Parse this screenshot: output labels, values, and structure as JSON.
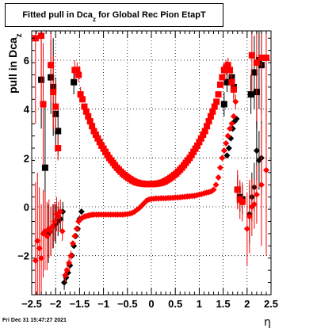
{
  "title": {
    "prefix": "Fitted pull in Dca",
    "subscript": "z",
    "suffix": " for Global Rec Pion EtapT"
  },
  "footer": "Fri Dec 31 15:47:27 2021",
  "colors": {
    "series_black": "#000000",
    "series_red": "#ff0000",
    "grid": "#000000"
  },
  "chart_data": {
    "type": "scatter",
    "xlabel": "η",
    "ylabel_prefix": "pull in Dca",
    "ylabel_subscript": "z",
    "xlim": [
      -2.5,
      2.5
    ],
    "ylim": [
      -3.6,
      7.2
    ],
    "grid": true,
    "xticks": [
      "−2.5",
      "−2",
      "−1.5",
      "−1",
      "−0.5",
      "0",
      "0.5",
      "1",
      "1.5",
      "2",
      "2.5"
    ],
    "xtick_values": [
      -2.5,
      -2,
      -1.5,
      -1,
      -0.5,
      0,
      0.5,
      1,
      1.5,
      2,
      2.5
    ],
    "yticks": [
      "−2",
      "0",
      "2",
      "4",
      "6"
    ],
    "ytick_values": [
      -2,
      0,
      2,
      4,
      6
    ],
    "series": [
      {
        "marker": "square",
        "color": "#000000",
        "x": [
          -2.3,
          -2.22,
          -2.1,
          -2.05,
          -2.0,
          -1.95,
          -1.62,
          1.52,
          1.58,
          1.68,
          1.72,
          1.8,
          1.85,
          1.9,
          2.08,
          2.15,
          2.2,
          2.25,
          2.3
        ],
        "y": [
          5.2,
          1.6,
          5.3,
          4.9,
          3.8,
          3.1,
          5.1,
          4.2,
          5.1,
          5.3,
          4.9,
          0.7,
          0.4,
          0.3,
          4.6,
          5.5,
          4.7,
          6.0,
          5.8
        ],
        "yerr": [
          2.0,
          2.5,
          1.5,
          2.0,
          1.5,
          1.0,
          0.5,
          0.5,
          0.4,
          0.4,
          0.5,
          0.6,
          0.6,
          0.6,
          0.8,
          1.5,
          1.5,
          2.0,
          2.0
        ]
      },
      {
        "marker": "square",
        "color": "#ff0000",
        "x": [
          -2.42,
          -2.3,
          -2.26,
          -2.1,
          -2.05,
          -2.0,
          -1.95,
          -1.6,
          -1.55,
          -1.52,
          -1.48,
          -1.44,
          -1.4,
          -1.36,
          -1.32,
          -1.28,
          -1.24,
          -1.2,
          -1.16,
          -1.12,
          -1.08,
          -1.04,
          -1.0,
          -0.96,
          -0.92,
          -0.88,
          -0.84,
          -0.8,
          -0.76,
          -0.72,
          -0.68,
          -0.64,
          -0.6,
          -0.56,
          -0.52,
          -0.48,
          -0.44,
          -0.4,
          -0.36,
          -0.32,
          -0.28,
          -0.24,
          -0.2,
          -0.16,
          -0.12,
          -0.08,
          -0.04,
          0.0,
          0.04,
          0.08,
          0.12,
          0.16,
          0.2,
          0.24,
          0.28,
          0.32,
          0.36,
          0.4,
          0.44,
          0.48,
          0.52,
          0.56,
          0.6,
          0.64,
          0.68,
          0.72,
          0.76,
          0.8,
          0.84,
          0.88,
          0.92,
          0.96,
          1.0,
          1.04,
          1.08,
          1.12,
          1.16,
          1.2,
          1.24,
          1.28,
          1.32,
          1.36,
          1.4,
          1.44,
          1.48,
          1.52,
          1.56,
          1.6,
          1.64,
          1.68,
          1.72,
          1.8,
          1.85,
          1.9,
          2.1,
          2.2,
          2.3,
          2.4
        ],
        "y": [
          6.9,
          7.0,
          4.2,
          5.8,
          4.7,
          4.1,
          2.4,
          5.6,
          5.6,
          5.4,
          4.6,
          4.4,
          4.1,
          3.9,
          3.7,
          3.5,
          3.3,
          3.1,
          2.95,
          2.8,
          2.65,
          2.5,
          2.38,
          2.25,
          2.12,
          2.0,
          1.9,
          1.8,
          1.7,
          1.6,
          1.52,
          1.44,
          1.36,
          1.3,
          1.24,
          1.18,
          1.13,
          1.08,
          1.04,
          1.0,
          0.98,
          0.96,
          0.95,
          0.94,
          0.93,
          0.93,
          0.93,
          0.93,
          0.93,
          0.94,
          0.95,
          0.96,
          0.98,
          1.0,
          1.04,
          1.08,
          1.13,
          1.18,
          1.24,
          1.3,
          1.36,
          1.44,
          1.52,
          1.6,
          1.7,
          1.8,
          1.9,
          2.0,
          2.12,
          2.25,
          2.38,
          2.5,
          2.65,
          2.8,
          2.95,
          3.1,
          3.3,
          3.5,
          3.7,
          3.9,
          4.1,
          4.3,
          4.6,
          5.0,
          5.3,
          5.6,
          5.7,
          5.8,
          5.6,
          5.1,
          4.8,
          0.7,
          0.3,
          0.2,
          6.2,
          5.9,
          6.1,
          6.1
        ],
        "yerr": [
          3.5,
          3.0,
          2.5,
          1.5,
          1.5,
          1.0,
          0.5,
          0.4,
          0.3,
          0.3,
          0.3,
          0,
          0,
          0,
          0,
          0,
          0,
          0,
          0,
          0,
          0,
          0,
          0,
          0,
          0,
          0,
          0,
          0,
          0,
          0,
          0,
          0,
          0,
          0,
          0,
          0,
          0,
          0,
          0,
          0,
          0,
          0,
          0,
          0,
          0,
          0,
          0,
          0,
          0,
          0,
          0,
          0,
          0,
          0,
          0,
          0,
          0,
          0,
          0,
          0,
          0,
          0,
          0,
          0,
          0,
          0,
          0,
          0,
          0,
          0,
          0,
          0,
          0,
          0,
          0,
          0,
          0,
          0,
          0,
          0,
          0,
          0,
          0,
          0,
          0,
          0.3,
          0.3,
          0.3,
          0.3,
          0.4,
          0.5,
          0.8,
          0.8,
          0.8,
          1.5,
          2.5,
          3.0,
          3.5
        ]
      },
      {
        "marker": "diamond",
        "color": "#000000",
        "x": [
          -2.15,
          -2.1,
          -2.05,
          -2.0,
          -1.95,
          -1.9,
          -1.85,
          -1.82,
          -1.78,
          -1.74,
          -1.7,
          -1.66,
          -1.62,
          -1.58,
          -1.54,
          -1.5,
          -1.46,
          1.58,
          1.62,
          1.66,
          1.7,
          1.74,
          1.78,
          2.05,
          2.1,
          2.15,
          2.2,
          2.25,
          2.3
        ],
        "y": [
          -1.1,
          -1.0,
          -0.8,
          -0.7,
          -0.6,
          -0.5,
          -0.2,
          -3.1,
          -2.9,
          -2.7,
          -2.4,
          -2.0,
          -1.6,
          -1.2,
          -0.9,
          -0.5,
          -0.2,
          2.1,
          2.4,
          2.8,
          3.2,
          3.5,
          3.6,
          -0.3,
          0.4,
          0.8,
          2.3,
          1.9,
          2.0
        ],
        "yerr": [
          1.2,
          1.0,
          0.9,
          0.8,
          0.6,
          0.5,
          0.4,
          0.3,
          0.2,
          0,
          0,
          0,
          0,
          0,
          0,
          0,
          0,
          0,
          0,
          0,
          0,
          0,
          0,
          1.2,
          1.0,
          1.0,
          1.2,
          1.2,
          1.5
        ]
      },
      {
        "marker": "diamond",
        "color": "#ff0000",
        "x": [
          -2.42,
          -2.38,
          -2.34,
          -2.3,
          -2.26,
          -2.22,
          -2.18,
          -2.14,
          -2.1,
          -2.06,
          -2.02,
          -1.98,
          -1.94,
          -1.9,
          -1.86,
          -1.8,
          -1.76,
          -1.72,
          -1.68,
          -1.64,
          -1.6,
          -1.56,
          -1.52,
          -1.48,
          -1.44,
          -1.4,
          -1.36,
          -1.32,
          -1.28,
          -1.24,
          -1.2,
          -1.15,
          -1.1,
          -1.05,
          -1.0,
          -0.95,
          -0.9,
          -0.85,
          -0.8,
          -0.75,
          -0.7,
          -0.65,
          -0.6,
          -0.55,
          -0.5,
          -0.45,
          -0.4,
          -0.35,
          -0.3,
          -0.25,
          -0.2,
          -0.15,
          -0.1,
          -0.05,
          0.0,
          0.05,
          0.1,
          0.15,
          0.2,
          0.25,
          0.3,
          0.35,
          0.4,
          0.45,
          0.5,
          0.55,
          0.6,
          0.65,
          0.7,
          0.75,
          0.8,
          0.85,
          0.9,
          0.95,
          1.0,
          1.05,
          1.1,
          1.15,
          1.2,
          1.25,
          1.3,
          1.35,
          1.4,
          1.44,
          1.48,
          1.52,
          1.56,
          1.6,
          1.64,
          1.68,
          1.72,
          1.76,
          2.0,
          2.05,
          2.1,
          2.15,
          2.2,
          2.3,
          2.4
        ],
        "y": [
          -2.2,
          -1.4,
          -1.7,
          -2.1,
          -1.1,
          -1.0,
          -1.2,
          -0.9,
          -1.0,
          -0.8,
          -0.6,
          -0.3,
          -0.4,
          -0.2,
          -1.0,
          -2.8,
          -2.6,
          -2.3,
          -2.0,
          -1.5,
          -1.2,
          -0.9,
          -0.6,
          -0.5,
          -0.45,
          -0.4,
          -0.38,
          -0.36,
          -0.34,
          -0.33,
          -0.32,
          -0.32,
          -0.32,
          -0.32,
          -0.32,
          -0.32,
          -0.32,
          -0.32,
          -0.32,
          -0.32,
          -0.32,
          -0.32,
          -0.32,
          -0.31,
          -0.3,
          -0.28,
          -0.25,
          -0.2,
          -0.12,
          -0.05,
          0.05,
          0.15,
          0.25,
          0.3,
          0.32,
          0.33,
          0.34,
          0.34,
          0.35,
          0.35,
          0.35,
          0.36,
          0.36,
          0.37,
          0.38,
          0.38,
          0.39,
          0.4,
          0.41,
          0.42,
          0.43,
          0.44,
          0.45,
          0.47,
          0.5,
          0.52,
          0.55,
          0.58,
          0.6,
          0.63,
          0.7,
          0.9,
          1.2,
          1.6,
          2.0,
          2.3,
          2.6,
          2.9,
          3.2,
          3.4,
          3.7,
          4.3,
          -0.9,
          -0.4,
          0.0,
          0.1,
          0.5,
          0.9,
          1.5
        ],
        "yerr": [
          3.2,
          2.8,
          2.5,
          2.2,
          1.8,
          1.6,
          1.4,
          1.2,
          1.0,
          0.9,
          0.8,
          0.7,
          0.6,
          0.5,
          0.4,
          0.3,
          0.3,
          0.3,
          0.2,
          0,
          0,
          0,
          0,
          0,
          0,
          0,
          0,
          0,
          0,
          0,
          0,
          0,
          0,
          0,
          0,
          0,
          0,
          0,
          0,
          0,
          0,
          0,
          0,
          0,
          0,
          0,
          0,
          0,
          0,
          0,
          0,
          0,
          0,
          0,
          0,
          0,
          0,
          0,
          0,
          0,
          0,
          0,
          0,
          0,
          0,
          0,
          0,
          0,
          0,
          0,
          0,
          0,
          0,
          0,
          0,
          0,
          0,
          0,
          0,
          0,
          0,
          0,
          0,
          0,
          0,
          0,
          0,
          0,
          0,
          0,
          0,
          0.3,
          1.5,
          1.5,
          1.2,
          1.0,
          1.2,
          2.5,
          3.5
        ]
      }
    ]
  }
}
